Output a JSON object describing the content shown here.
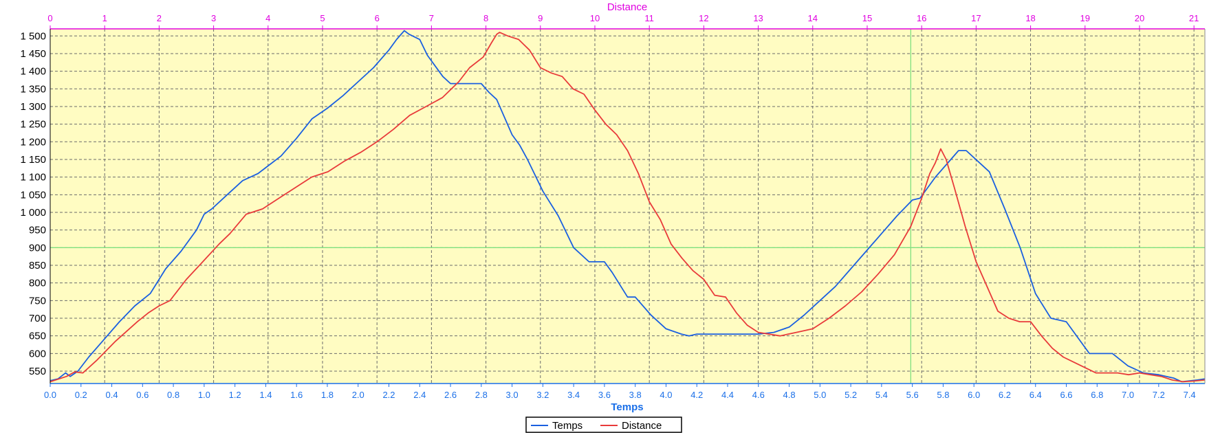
{
  "chart_data": {
    "type": "line",
    "x_top": {
      "label": "Distance",
      "range": [
        0,
        21.2
      ],
      "ticks": [
        "0",
        "1",
        "2",
        "3",
        "4",
        "5",
        "6",
        "7",
        "8",
        "9",
        "10",
        "11",
        "12",
        "13",
        "14",
        "15",
        "16",
        "17",
        "18",
        "19",
        "20",
        "21"
      ]
    },
    "x_bottom": {
      "label": "Temps",
      "range": [
        0,
        7.5
      ],
      "ticks": [
        "0.0",
        "0.2",
        "0.4",
        "0.6",
        "0.8",
        "1.0",
        "1.2",
        "1.4",
        "1.6",
        "1.8",
        "2.0",
        "2.2",
        "2.4",
        "2.6",
        "2.8",
        "3.0",
        "3.2",
        "3.4",
        "3.6",
        "3.8",
        "4.0",
        "4.2",
        "4.4",
        "4.6",
        "4.8",
        "5.0",
        "5.2",
        "5.4",
        "5.6",
        "5.8",
        "6.0",
        "6.2",
        "6.4",
        "6.6",
        "6.8",
        "7.0",
        "7.2",
        "7.4"
      ]
    },
    "y": {
      "range": [
        515,
        1520
      ],
      "ticks": [
        "550",
        "600",
        "650",
        "700",
        "750",
        "800",
        "850",
        "900",
        "950",
        "1 000",
        "1 050",
        "1 100",
        "1 150",
        "1 200",
        "1 250",
        "1 300",
        "1 350",
        "1 400",
        "1 450",
        "1 500"
      ]
    },
    "reference_lines": {
      "vertical_distance": 15.8,
      "horizontal_y": 900,
      "color": "#7fe07f"
    },
    "legend": {
      "position": "bottom-center",
      "entries": [
        "Temps",
        "Distance"
      ]
    },
    "series": [
      {
        "name": "Temps",
        "axis": "x_bottom",
        "color": "#1a5fe0",
        "points": [
          [
            0.0,
            523
          ],
          [
            0.05,
            528
          ],
          [
            0.1,
            545
          ],
          [
            0.13,
            535
          ],
          [
            0.18,
            550
          ],
          [
            0.25,
            590
          ],
          [
            0.35,
            640
          ],
          [
            0.45,
            690
          ],
          [
            0.55,
            735
          ],
          [
            0.65,
            770
          ],
          [
            0.75,
            840
          ],
          [
            0.85,
            890
          ],
          [
            0.95,
            950
          ],
          [
            1.0,
            995
          ],
          [
            1.05,
            1010
          ],
          [
            1.15,
            1050
          ],
          [
            1.25,
            1090
          ],
          [
            1.35,
            1110
          ],
          [
            1.5,
            1160
          ],
          [
            1.6,
            1210
          ],
          [
            1.7,
            1265
          ],
          [
            1.8,
            1295
          ],
          [
            1.9,
            1330
          ],
          [
            2.0,
            1370
          ],
          [
            2.1,
            1410
          ],
          [
            2.2,
            1460
          ],
          [
            2.25,
            1490
          ],
          [
            2.3,
            1515
          ],
          [
            2.33,
            1505
          ],
          [
            2.4,
            1490
          ],
          [
            2.45,
            1445
          ],
          [
            2.55,
            1385
          ],
          [
            2.6,
            1365
          ],
          [
            2.8,
            1365
          ],
          [
            2.85,
            1340
          ],
          [
            2.9,
            1320
          ],
          [
            3.0,
            1220
          ],
          [
            3.05,
            1190
          ],
          [
            3.1,
            1150
          ],
          [
            3.2,
            1060
          ],
          [
            3.3,
            990
          ],
          [
            3.4,
            900
          ],
          [
            3.5,
            860
          ],
          [
            3.6,
            860
          ],
          [
            3.65,
            830
          ],
          [
            3.75,
            760
          ],
          [
            3.8,
            760
          ],
          [
            3.9,
            710
          ],
          [
            4.0,
            670
          ],
          [
            4.1,
            655
          ],
          [
            4.15,
            650
          ],
          [
            4.2,
            655
          ],
          [
            4.6,
            655
          ],
          [
            4.7,
            660
          ],
          [
            4.8,
            675
          ],
          [
            4.9,
            710
          ],
          [
            5.0,
            750
          ],
          [
            5.1,
            790
          ],
          [
            5.2,
            840
          ],
          [
            5.3,
            890
          ],
          [
            5.4,
            940
          ],
          [
            5.5,
            990
          ],
          [
            5.6,
            1035
          ],
          [
            5.65,
            1040
          ],
          [
            5.75,
            1100
          ],
          [
            5.85,
            1150
          ],
          [
            5.9,
            1175
          ],
          [
            5.95,
            1175
          ],
          [
            6.05,
            1135
          ],
          [
            6.1,
            1115
          ],
          [
            6.2,
            1010
          ],
          [
            6.3,
            900
          ],
          [
            6.4,
            770
          ],
          [
            6.5,
            700
          ],
          [
            6.6,
            690
          ],
          [
            6.75,
            600
          ],
          [
            6.9,
            600
          ],
          [
            7.0,
            565
          ],
          [
            7.1,
            545
          ],
          [
            7.2,
            540
          ],
          [
            7.3,
            530
          ],
          [
            7.35,
            520
          ],
          [
            7.45,
            525
          ],
          [
            7.5,
            528
          ]
        ]
      },
      {
        "name": "Distance",
        "axis": "x_top",
        "color": "#e83a3a",
        "points": [
          [
            0.0,
            520
          ],
          [
            0.3,
            535
          ],
          [
            0.45,
            548
          ],
          [
            0.6,
            545
          ],
          [
            0.85,
            580
          ],
          [
            1.2,
            635
          ],
          [
            1.6,
            690
          ],
          [
            1.8,
            715
          ],
          [
            2.0,
            735
          ],
          [
            2.2,
            750
          ],
          [
            2.5,
            810
          ],
          [
            2.8,
            860
          ],
          [
            3.1,
            910
          ],
          [
            3.3,
            940
          ],
          [
            3.6,
            995
          ],
          [
            3.9,
            1010
          ],
          [
            4.2,
            1040
          ],
          [
            4.5,
            1070
          ],
          [
            4.8,
            1100
          ],
          [
            5.1,
            1115
          ],
          [
            5.4,
            1145
          ],
          [
            5.7,
            1170
          ],
          [
            6.0,
            1200
          ],
          [
            6.3,
            1235
          ],
          [
            6.6,
            1275
          ],
          [
            6.9,
            1300
          ],
          [
            7.2,
            1325
          ],
          [
            7.5,
            1370
          ],
          [
            7.7,
            1410
          ],
          [
            7.95,
            1440
          ],
          [
            8.1,
            1480
          ],
          [
            8.2,
            1505
          ],
          [
            8.25,
            1510
          ],
          [
            8.4,
            1500
          ],
          [
            8.6,
            1490
          ],
          [
            8.8,
            1460
          ],
          [
            9.0,
            1410
          ],
          [
            9.2,
            1395
          ],
          [
            9.4,
            1385
          ],
          [
            9.6,
            1350
          ],
          [
            9.8,
            1335
          ],
          [
            10.0,
            1290
          ],
          [
            10.2,
            1250
          ],
          [
            10.4,
            1220
          ],
          [
            10.6,
            1175
          ],
          [
            10.8,
            1110
          ],
          [
            11.0,
            1030
          ],
          [
            11.2,
            980
          ],
          [
            11.4,
            910
          ],
          [
            11.6,
            870
          ],
          [
            11.8,
            835
          ],
          [
            12.0,
            810
          ],
          [
            12.2,
            765
          ],
          [
            12.4,
            760
          ],
          [
            12.6,
            715
          ],
          [
            12.8,
            680
          ],
          [
            13.0,
            660
          ],
          [
            13.4,
            650
          ],
          [
            13.7,
            660
          ],
          [
            14.0,
            670
          ],
          [
            14.3,
            700
          ],
          [
            14.6,
            735
          ],
          [
            14.9,
            775
          ],
          [
            15.2,
            825
          ],
          [
            15.5,
            880
          ],
          [
            15.8,
            960
          ],
          [
            16.0,
            1040
          ],
          [
            16.15,
            1110
          ],
          [
            16.25,
            1140
          ],
          [
            16.35,
            1180
          ],
          [
            16.45,
            1150
          ],
          [
            16.6,
            1070
          ],
          [
            16.8,
            960
          ],
          [
            17.0,
            860
          ],
          [
            17.2,
            790
          ],
          [
            17.4,
            720
          ],
          [
            17.6,
            700
          ],
          [
            17.8,
            690
          ],
          [
            18.0,
            690
          ],
          [
            18.2,
            650
          ],
          [
            18.4,
            615
          ],
          [
            18.6,
            590
          ],
          [
            18.8,
            575
          ],
          [
            19.0,
            560
          ],
          [
            19.2,
            545
          ],
          [
            19.4,
            545
          ],
          [
            19.6,
            545
          ],
          [
            19.8,
            540
          ],
          [
            20.0,
            545
          ],
          [
            20.2,
            540
          ],
          [
            20.4,
            535
          ],
          [
            20.6,
            525
          ],
          [
            20.8,
            520
          ],
          [
            21.0,
            522
          ],
          [
            21.2,
            525
          ]
        ]
      }
    ]
  }
}
